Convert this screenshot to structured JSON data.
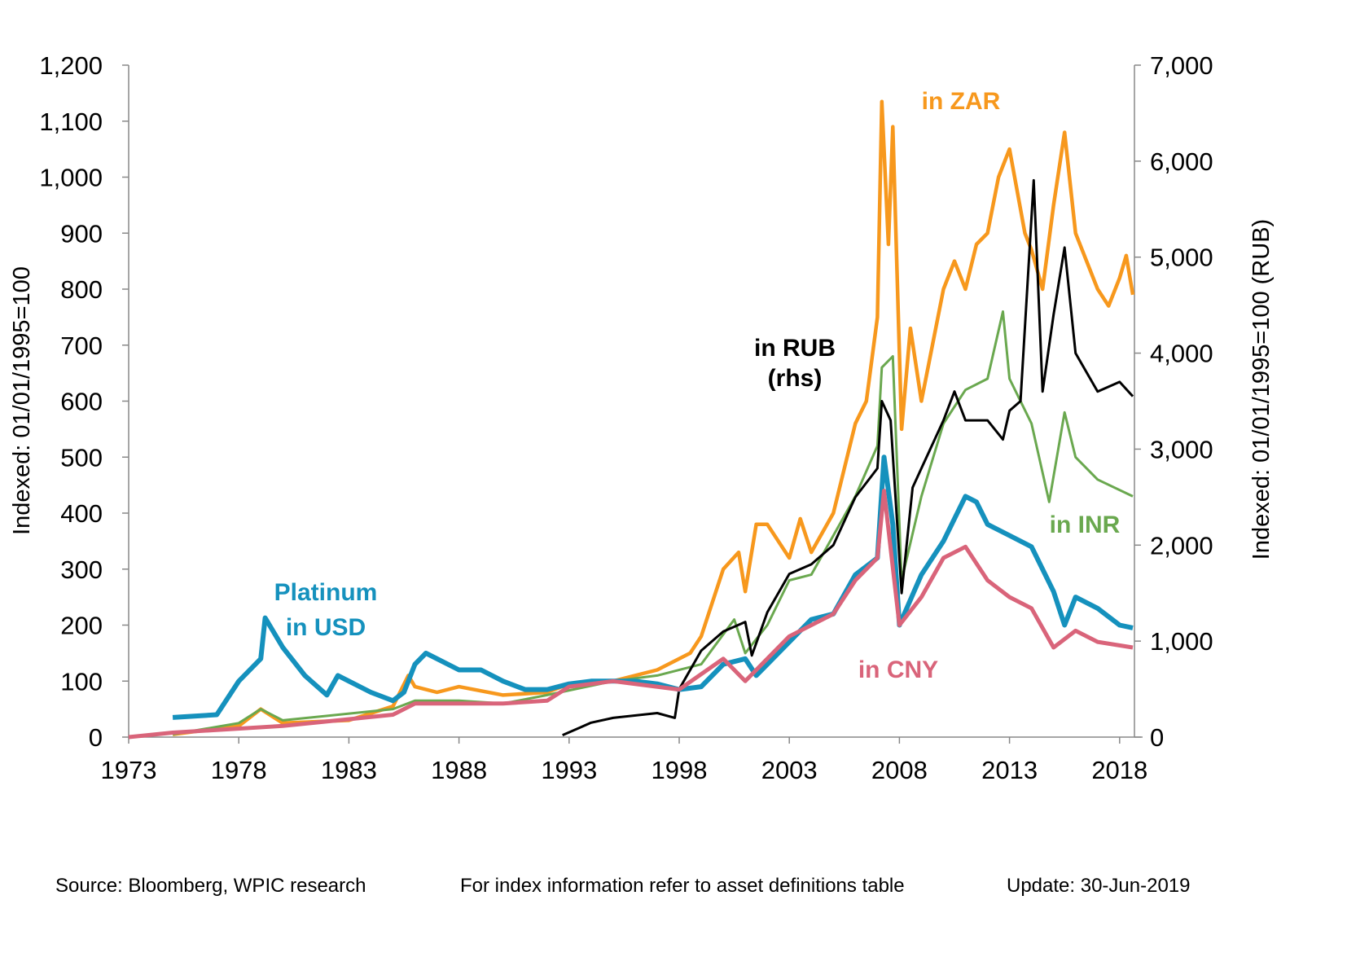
{
  "chart_data": {
    "type": "line",
    "ylabel": "Indexed:  01/01/1995=100",
    "y2label": "Indexed:  01/01/1995=100  (RUB)",
    "xlim": [
      1973,
      2018.6
    ],
    "ylim": [
      0,
      1200
    ],
    "y2lim": [
      0,
      7000
    ],
    "xticks": [
      "1973",
      "1978",
      "1983",
      "1988",
      "1993",
      "1998",
      "2003",
      "2008",
      "2013",
      "2018"
    ],
    "yticks": [
      "0",
      "100",
      "200",
      "300",
      "400",
      "500",
      "600",
      "700",
      "800",
      "900",
      "1,000",
      "1,100",
      "1,200"
    ],
    "y2ticks": [
      "0",
      "1,000",
      "2,000",
      "3,000",
      "4,000",
      "5,000",
      "6,000",
      "7,000"
    ],
    "grid": false,
    "series": [
      {
        "key": "zar",
        "color": "#f7981d",
        "axis": "left",
        "annotation": [
          "in ZAR"
        ],
        "points": [
          [
            1975,
            5
          ],
          [
            1978,
            20
          ],
          [
            1979,
            50
          ],
          [
            1980,
            25
          ],
          [
            1983,
            30
          ],
          [
            1985,
            55
          ],
          [
            1985.7,
            110
          ],
          [
            1986,
            90
          ],
          [
            1987,
            80
          ],
          [
            1988,
            90
          ],
          [
            1990,
            75
          ],
          [
            1992,
            80
          ],
          [
            1993,
            95
          ],
          [
            1995,
            100
          ],
          [
            1997,
            120
          ],
          [
            1998.5,
            150
          ],
          [
            1999,
            180
          ],
          [
            2000,
            300
          ],
          [
            2000.7,
            330
          ],
          [
            2001,
            260
          ],
          [
            2001.5,
            380
          ],
          [
            2002,
            380
          ],
          [
            2003,
            320
          ],
          [
            2003.5,
            390
          ],
          [
            2004,
            330
          ],
          [
            2005,
            400
          ],
          [
            2006,
            560
          ],
          [
            2006.5,
            600
          ],
          [
            2007,
            750
          ],
          [
            2007.2,
            1135
          ],
          [
            2007.5,
            880
          ],
          [
            2007.7,
            1090
          ],
          [
            2008.1,
            550
          ],
          [
            2008.5,
            730
          ],
          [
            2009,
            600
          ],
          [
            2010,
            800
          ],
          [
            2010.5,
            850
          ],
          [
            2011,
            800
          ],
          [
            2011.5,
            880
          ],
          [
            2012,
            900
          ],
          [
            2012.5,
            1000
          ],
          [
            2013,
            1050
          ],
          [
            2013.7,
            900
          ],
          [
            2014,
            870
          ],
          [
            2014.5,
            800
          ],
          [
            2015,
            950
          ],
          [
            2015.5,
            1080
          ],
          [
            2016,
            900
          ],
          [
            2016.5,
            850
          ],
          [
            2017,
            800
          ],
          [
            2017.5,
            770
          ],
          [
            2018,
            820
          ],
          [
            2018.3,
            860
          ],
          [
            2018.6,
            790
          ]
        ]
      },
      {
        "key": "inr",
        "color": "#6aa84f",
        "axis": "left",
        "annotation": [
          "in INR"
        ],
        "points": [
          [
            1975,
            5
          ],
          [
            1978,
            25
          ],
          [
            1979,
            50
          ],
          [
            1980,
            30
          ],
          [
            1985,
            50
          ],
          [
            1986,
            65
          ],
          [
            1988,
            65
          ],
          [
            1990,
            60
          ],
          [
            1992,
            75
          ],
          [
            1995,
            100
          ],
          [
            1997,
            110
          ],
          [
            1999,
            130
          ],
          [
            2000.5,
            210
          ],
          [
            2001,
            150
          ],
          [
            2002,
            200
          ],
          [
            2003,
            280
          ],
          [
            2004,
            290
          ],
          [
            2005,
            360
          ],
          [
            2006,
            430
          ],
          [
            2007,
            520
          ],
          [
            2007.2,
            660
          ],
          [
            2007.7,
            680
          ],
          [
            2008.1,
            280
          ],
          [
            2009,
            430
          ],
          [
            2010,
            560
          ],
          [
            2011,
            620
          ],
          [
            2012,
            640
          ],
          [
            2012.7,
            760
          ],
          [
            2013,
            640
          ],
          [
            2014,
            560
          ],
          [
            2014.8,
            420
          ],
          [
            2015.5,
            580
          ],
          [
            2016,
            500
          ],
          [
            2017,
            460
          ],
          [
            2018.6,
            430
          ]
        ]
      },
      {
        "key": "rub",
        "color": "#000000",
        "axis": "right",
        "annotation": [
          "in RUB",
          "(rhs)"
        ],
        "points": [
          [
            1992.7,
            20
          ],
          [
            1993.5,
            100
          ],
          [
            1994,
            150
          ],
          [
            1995,
            200
          ],
          [
            1997,
            250
          ],
          [
            1997.8,
            200
          ],
          [
            1998,
            500
          ],
          [
            1998.5,
            700
          ],
          [
            1999,
            900
          ],
          [
            2000,
            1100
          ],
          [
            2001,
            1200
          ],
          [
            2001.3,
            850
          ],
          [
            2002,
            1300
          ],
          [
            2003,
            1700
          ],
          [
            2004,
            1800
          ],
          [
            2005,
            2000
          ],
          [
            2006,
            2500
          ],
          [
            2007,
            2800
          ],
          [
            2007.2,
            3500
          ],
          [
            2007.6,
            3300
          ],
          [
            2008.1,
            1500
          ],
          [
            2008.6,
            2600
          ],
          [
            2009,
            2800
          ],
          [
            2010,
            3300
          ],
          [
            2010.5,
            3600
          ],
          [
            2011,
            3300
          ],
          [
            2012,
            3300
          ],
          [
            2012.7,
            3100
          ],
          [
            2013,
            3400
          ],
          [
            2013.5,
            3500
          ],
          [
            2014.1,
            5800
          ],
          [
            2014.5,
            3600
          ],
          [
            2015,
            4400
          ],
          [
            2015.5,
            5100
          ],
          [
            2016,
            4000
          ],
          [
            2016.5,
            3800
          ],
          [
            2017,
            3600
          ],
          [
            2018,
            3700
          ],
          [
            2018.6,
            3550
          ]
        ]
      },
      {
        "key": "usd",
        "color": "#1591bd",
        "axis": "left",
        "annotation": [
          "Platinum",
          "in USD"
        ],
        "points": [
          [
            1975,
            35
          ],
          [
            1977,
            40
          ],
          [
            1978,
            100
          ],
          [
            1979,
            140
          ],
          [
            1979.2,
            213
          ],
          [
            1980,
            160
          ],
          [
            1981,
            110
          ],
          [
            1982,
            75
          ],
          [
            1982.5,
            110
          ],
          [
            1983,
            100
          ],
          [
            1984,
            80
          ],
          [
            1985,
            65
          ],
          [
            1985.5,
            80
          ],
          [
            1986,
            130
          ],
          [
            1986.5,
            150
          ],
          [
            1987,
            140
          ],
          [
            1988,
            120
          ],
          [
            1989,
            120
          ],
          [
            1990,
            100
          ],
          [
            1991,
            85
          ],
          [
            1992,
            85
          ],
          [
            1993,
            95
          ],
          [
            1994,
            100
          ],
          [
            1995,
            100
          ],
          [
            1996,
            100
          ],
          [
            1997,
            95
          ],
          [
            1998,
            85
          ],
          [
            1999,
            90
          ],
          [
            2000,
            130
          ],
          [
            2001,
            140
          ],
          [
            2001.5,
            110
          ],
          [
            2002,
            130
          ],
          [
            2003,
            170
          ],
          [
            2004,
            210
          ],
          [
            2005,
            220
          ],
          [
            2006,
            290
          ],
          [
            2007,
            320
          ],
          [
            2007.3,
            500
          ],
          [
            2007.7,
            380
          ],
          [
            2008.0,
            200
          ],
          [
            2009,
            290
          ],
          [
            2010,
            350
          ],
          [
            2011,
            430
          ],
          [
            2011.5,
            420
          ],
          [
            2012,
            380
          ],
          [
            2013,
            360
          ],
          [
            2014,
            340
          ],
          [
            2015,
            260
          ],
          [
            2015.5,
            200
          ],
          [
            2016,
            250
          ],
          [
            2017,
            230
          ],
          [
            2018,
            200
          ],
          [
            2018.6,
            195
          ]
        ]
      },
      {
        "key": "cny",
        "color": "#d9647a",
        "axis": "left",
        "annotation": [
          "in CNY"
        ],
        "points": [
          [
            1973,
            0
          ],
          [
            1975,
            8
          ],
          [
            1980,
            20
          ],
          [
            1985,
            40
          ],
          [
            1986,
            60
          ],
          [
            1990,
            60
          ],
          [
            1992,
            65
          ],
          [
            1993,
            90
          ],
          [
            1995,
            100
          ],
          [
            1998,
            85
          ],
          [
            2000,
            140
          ],
          [
            2001,
            100
          ],
          [
            2003,
            180
          ],
          [
            2005,
            220
          ],
          [
            2006,
            280
          ],
          [
            2007,
            320
          ],
          [
            2007.3,
            440
          ],
          [
            2008,
            200
          ],
          [
            2009,
            250
          ],
          [
            2010,
            320
          ],
          [
            2011,
            340
          ],
          [
            2012,
            280
          ],
          [
            2013,
            250
          ],
          [
            2014,
            230
          ],
          [
            2015,
            160
          ],
          [
            2016,
            190
          ],
          [
            2017,
            170
          ],
          [
            2018.6,
            160
          ]
        ]
      }
    ]
  },
  "footer": {
    "source": "Source: Bloomberg, WPIC research",
    "note": "For index information refer to asset definitions table",
    "update": "Update: 30-Jun-2019"
  }
}
